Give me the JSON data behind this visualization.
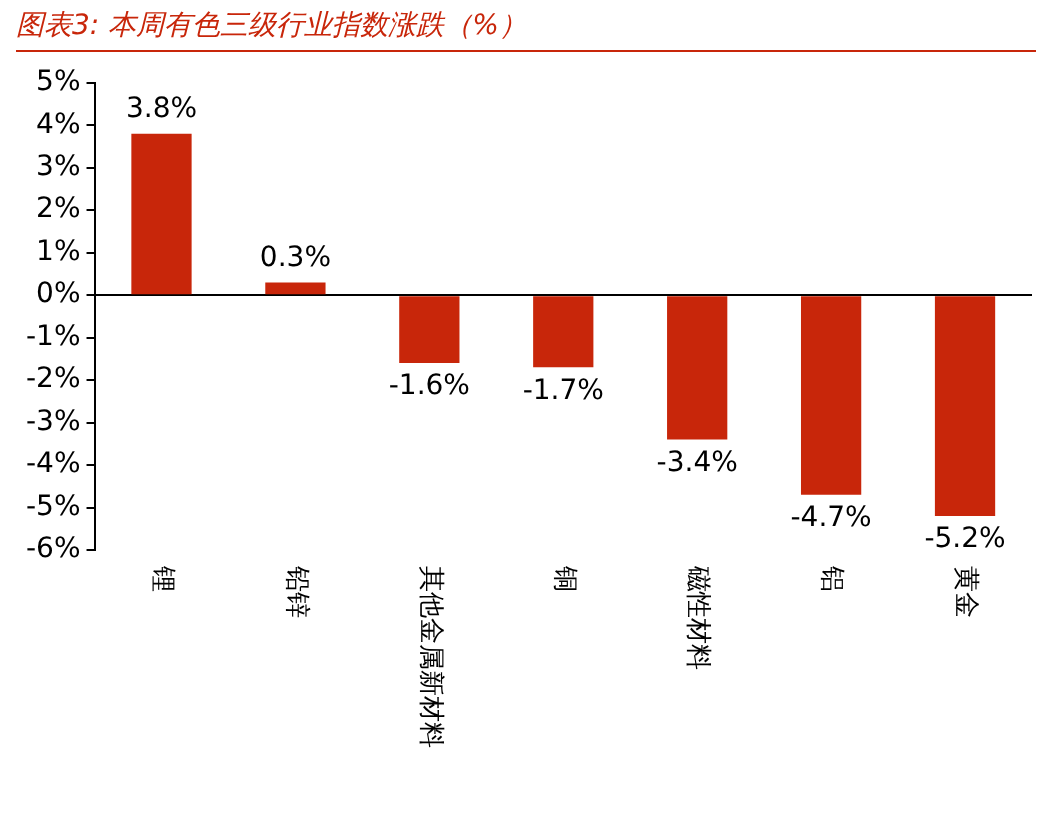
{
  "chart_data": {
    "type": "bar",
    "title": "图表3:  本周有色三级行业指数涨跌（%）",
    "categories": [
      "锂",
      "铅锌",
      "其他金属新材料",
      "铜",
      "磁性材料",
      "铝",
      "黄金"
    ],
    "values": [
      3.8,
      0.3,
      -1.6,
      -1.7,
      -3.4,
      -4.7,
      -5.2
    ],
    "value_labels": [
      "3.8%",
      "0.3%",
      "-1.6%",
      "-1.7%",
      "-3.4%",
      "-4.7%",
      "-5.2%"
    ],
    "color": "#c8260a",
    "ylim": [
      -6,
      5
    ],
    "yticks": [
      {
        "value": 5,
        "label": "5%"
      },
      {
        "value": 4,
        "label": "4%"
      },
      {
        "value": 3,
        "label": "3%"
      },
      {
        "value": 2,
        "label": "2%"
      },
      {
        "value": 1,
        "label": "1%"
      },
      {
        "value": 0,
        "label": "0%"
      },
      {
        "value": -1,
        "label": "-1%"
      },
      {
        "value": -2,
        "label": "-2%"
      },
      {
        "value": -3,
        "label": "-3%"
      },
      {
        "value": -4,
        "label": "-4%"
      },
      {
        "value": -5,
        "label": "-5%"
      },
      {
        "value": -6,
        "label": "-6%"
      }
    ]
  }
}
